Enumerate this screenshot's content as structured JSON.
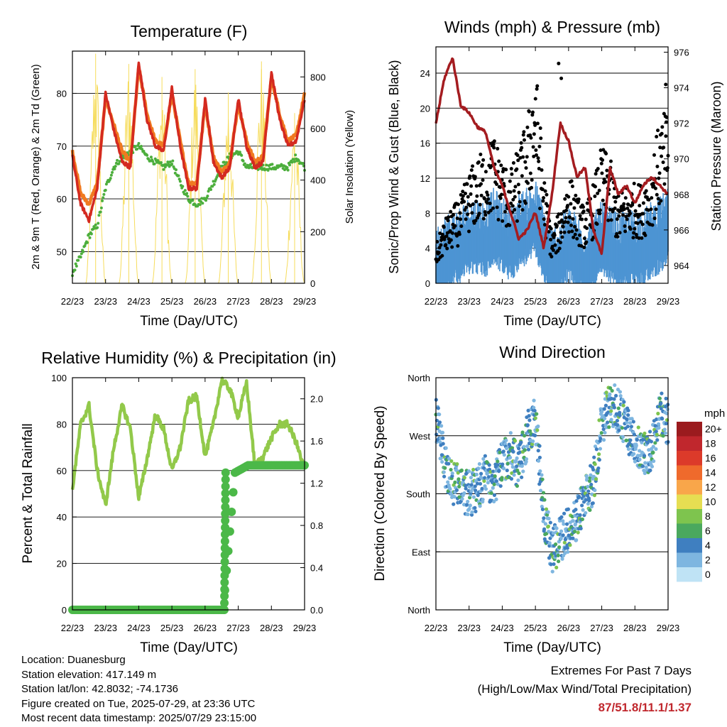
{
  "time_ticks": [
    "22/23",
    "23/23",
    "24/23",
    "25/23",
    "26/23",
    "27/23",
    "28/23",
    "29/23"
  ],
  "info": {
    "location": "Location: Duanesburg",
    "elevation": "Station elevation: 417.149 m",
    "latlon": "Station lat/lon: 42.8032; -74.1736",
    "created": "Figure created on Tue, 2025-07-29, at 23:36 UTC",
    "recent": "Most recent data timestamp: 2025/07/29 23:15:00"
  },
  "extremes": {
    "title": "Extremes For Past 7 Days",
    "subtitle": "(High/Low/Max Wind/Total Precipitation)",
    "values": "87/51.8/11.1/1.37"
  },
  "colors": {
    "red": "#d42a20",
    "orange": "#f07a20",
    "green": "#4cae3c",
    "yellow": "#f6dc5c",
    "black": "#000000",
    "blue": "#4d94d3",
    "maroon": "#a41c20",
    "rh_green": "#92c94a",
    "precip_green": "#4bb848"
  },
  "chart_data": [
    {
      "id": "temperature",
      "type": "line",
      "title": "Temperature (F)",
      "xlabel": "Time (Day/UTC)",
      "ylabel": "2m & 9m T (Red, Orange) & 2m Td (Green)",
      "ylabel_right": "Solar Insolation (Yellow)",
      "xlim": [
        0,
        7
      ],
      "ylim": [
        44,
        88
      ],
      "ylim_right": [
        0,
        900
      ],
      "yticks": [
        50,
        60,
        70,
        80
      ],
      "yticks_right": [
        0,
        200,
        400,
        600,
        800
      ],
      "grid": true,
      "x": [
        0,
        0.25,
        0.5,
        0.75,
        1,
        1.25,
        1.5,
        1.75,
        2,
        2.25,
        2.5,
        2.75,
        3,
        3.25,
        3.5,
        3.75,
        4,
        4.25,
        4.5,
        4.75,
        5,
        5.25,
        5.5,
        5.75,
        6,
        6.25,
        6.5,
        6.75,
        7
      ],
      "series": [
        {
          "name": "2m T",
          "values": [
            68,
            59,
            56,
            62,
            80,
            73,
            67,
            66,
            86,
            75,
            70,
            69,
            81,
            70,
            62,
            62,
            79,
            67,
            64,
            66,
            79,
            70,
            66,
            67,
            84,
            75,
            70,
            71,
            79
          ]
        },
        {
          "name": "9m T",
          "values": [
            69,
            61,
            59,
            63,
            79,
            74,
            69,
            67,
            85,
            76,
            71,
            70,
            80,
            71,
            63,
            63,
            78,
            68,
            65,
            67,
            78,
            71,
            67,
            68,
            83,
            76,
            71,
            72,
            80
          ]
        },
        {
          "name": "2m Td",
          "values": [
            46,
            49,
            53,
            55,
            62,
            66,
            68,
            69,
            70,
            68,
            67,
            66,
            67,
            63,
            60,
            59,
            60,
            63,
            66,
            68,
            69,
            66,
            66,
            66,
            66,
            66,
            66,
            68,
            66
          ]
        },
        {
          "name": "Solar Insolation",
          "days": [
            0.7,
            1.7,
            2.7,
            3.7,
            4.7,
            5.7,
            6.7
          ],
          "peaks": [
            890,
            850,
            800,
            830,
            740,
            860,
            660
          ]
        }
      ]
    },
    {
      "id": "winds",
      "type": "line",
      "title": "Winds (mph) & Pressure (mb)",
      "xlabel": "Time (Day/UTC)",
      "ylabel": "Sonic/Prop Wind & Gust (Blue, Black)",
      "ylabel_right": "Station Pressure (Maroon)",
      "xlim": [
        0,
        7
      ],
      "ylim": [
        0,
        27
      ],
      "ylim_right": [
        963,
        976.3
      ],
      "yticks": [
        0,
        4,
        8,
        12,
        16,
        20,
        24
      ],
      "yticks_right": [
        964,
        966,
        968,
        970,
        972,
        974,
        976
      ],
      "grid": true,
      "x": [
        0,
        0.25,
        0.5,
        0.75,
        1,
        1.25,
        1.5,
        1.75,
        2,
        2.25,
        2.5,
        2.75,
        3,
        3.25,
        3.5,
        3.75,
        4,
        4.25,
        4.5,
        4.75,
        5,
        5.25,
        5.5,
        5.75,
        6,
        6.25,
        6.5,
        6.75,
        7
      ],
      "series": [
        {
          "name": "Wind",
          "values": [
            1.5,
            3,
            3.5,
            4,
            5,
            5,
            4.5,
            6,
            5,
            4,
            5.5,
            6,
            7,
            4,
            1.5,
            2.5,
            4,
            3,
            2,
            3,
            4.5,
            4,
            3,
            3.5,
            3.5,
            3.5,
            4.5,
            5,
            6
          ]
        },
        {
          "name": "Gust",
          "values": [
            3,
            5,
            6,
            7,
            9,
            10,
            11,
            12,
            10,
            9,
            11,
            13,
            18,
            9,
            4,
            6,
            9,
            7,
            6,
            8,
            11,
            10,
            7,
            8,
            8,
            8,
            10,
            13,
            14
          ]
        },
        {
          "name": "Pressure",
          "values": [
            972,
            974.5,
            975.7,
            973,
            972.6,
            971.8,
            971.5,
            969.5,
            968.5,
            967,
            965.5,
            966,
            967,
            965,
            968,
            972,
            971,
            969,
            969.5,
            966,
            964.6,
            969.5,
            968,
            968.5,
            967.5,
            968.5,
            969,
            968.5,
            968
          ]
        }
      ]
    },
    {
      "id": "humidity",
      "type": "line",
      "title": "Relative Humidity (%) & Precipitation (in)",
      "xlabel": "Time (Day/UTC)",
      "ylabel": "Percent & Total Rainfall",
      "xlim": [
        0,
        7
      ],
      "ylim": [
        0,
        100
      ],
      "ylim_right": [
        0,
        2.2
      ],
      "yticks": [
        0,
        20,
        40,
        60,
        80,
        100
      ],
      "yticks_right": [
        0.0,
        0.4,
        0.8,
        1.2,
        1.6,
        2.0
      ],
      "grid": true,
      "x": [
        0,
        0.25,
        0.5,
        0.75,
        1,
        1.25,
        1.5,
        1.75,
        2,
        2.25,
        2.5,
        2.75,
        3,
        3.25,
        3.5,
        3.75,
        4,
        4.25,
        4.5,
        4.75,
        5,
        5.25,
        5.5,
        5.75,
        6,
        6.25,
        6.5,
        6.75,
        7
      ],
      "series": [
        {
          "name": "RH",
          "values": [
            52,
            80,
            88,
            60,
            45,
            70,
            88,
            78,
            48,
            65,
            84,
            78,
            60,
            70,
            90,
            92,
            66,
            80,
            99,
            95,
            83,
            98,
            62,
            66,
            74,
            80,
            80,
            72,
            60
          ]
        },
        {
          "name": "Precip",
          "values": [
            0,
            0,
            0,
            0,
            0,
            0,
            0,
            0,
            0,
            0,
            0,
            0,
            0,
            0,
            0,
            0,
            0,
            0,
            0,
            1.37,
            1.37,
            1.37,
            1.37,
            1.37,
            1.37,
            1.37,
            1.37,
            1.37,
            1.37
          ]
        }
      ]
    },
    {
      "id": "direction",
      "type": "scatter",
      "title": "Wind Direction",
      "xlabel": "Time (Day/UTC)",
      "ylabel": "Direction (Colored By Speed)",
      "xlim": [
        0,
        7
      ],
      "ylim": [
        0,
        360
      ],
      "yticks": [
        "North",
        "East",
        "South",
        "West",
        "North"
      ],
      "grid": true,
      "legend_title": "mph",
      "legend_labels": [
        "20+",
        "18",
        "16",
        "14",
        "12",
        "10",
        "8",
        "6",
        "4",
        "2",
        "0"
      ],
      "legend_colors": [
        "#9b1b1e",
        "#c0272d",
        "#dc3a2a",
        "#ef6a2c",
        "#f9a64a",
        "#e6de52",
        "#7ec44e",
        "#4aa85e",
        "#3f7fc0",
        "#7eb6e0",
        "#bfe3f5"
      ],
      "x": [
        0,
        0.25,
        0.5,
        0.75,
        1,
        1.25,
        1.5,
        1.75,
        2,
        2.25,
        2.5,
        2.75,
        3,
        3.25,
        3.5,
        3.75,
        4,
        4.25,
        4.5,
        4.75,
        5,
        5.25,
        5.5,
        5.75,
        6,
        6.25,
        6.5,
        6.75,
        7
      ],
      "series": [
        {
          "name": "Direction",
          "values": [
            300,
            230,
            200,
            185,
            180,
            185,
            210,
            190,
            230,
            240,
            220,
            270,
            300,
            150,
            90,
            110,
            125,
            140,
            170,
            200,
            290,
            320,
            310,
            280,
            260,
            240,
            250,
            305,
            290
          ]
        }
      ]
    }
  ]
}
